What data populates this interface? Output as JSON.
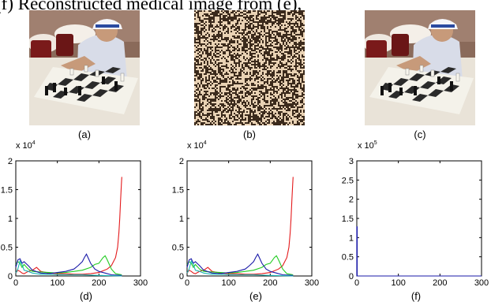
{
  "heading": "(f) Reconstructed medical image from (e),",
  "captions": {
    "a": "(a)",
    "b": "(b)",
    "c": "(c)",
    "d": "(d)",
    "e": "(e)",
    "f": "(f)"
  },
  "colors": {
    "red": "#e41a1c",
    "green": "#22cc22",
    "blue": "#1a1aa8",
    "cyan": "#19b6b6",
    "noise_dark": "#3b2a1c",
    "noise_light": "#e9d2b4"
  },
  "chart_data": [
    {
      "type": "line",
      "panel": "(d)",
      "exponent_label": "x 10",
      "exponent": "4",
      "xlim": [
        0,
        300
      ],
      "ylim": [
        0,
        2
      ],
      "xticks": [
        "0",
        "100",
        "200",
        "300"
      ],
      "yticks": [
        "0",
        "0.5",
        "1",
        "1.5",
        "2"
      ],
      "series": [
        {
          "color": "red",
          "x": [
            0,
            5,
            10,
            15,
            20,
            30,
            40,
            50,
            60,
            80,
            100,
            120,
            140,
            160,
            180,
            200,
            220,
            230,
            240,
            245,
            248,
            250,
            252,
            254,
            255
          ],
          "y": [
            0.05,
            0.1,
            0.08,
            0.05,
            0.04,
            0.08,
            0.1,
            0.15,
            0.08,
            0.05,
            0.04,
            0.04,
            0.03,
            0.03,
            0.04,
            0.06,
            0.12,
            0.18,
            0.32,
            0.5,
            0.75,
            1.0,
            1.3,
            1.6,
            1.72
          ]
        },
        {
          "color": "green",
          "x": [
            0,
            5,
            10,
            15,
            20,
            30,
            40,
            60,
            80,
            100,
            120,
            140,
            160,
            180,
            190,
            200,
            210,
            215,
            220,
            230,
            240,
            255
          ],
          "y": [
            0.2,
            0.25,
            0.22,
            0.15,
            0.2,
            0.12,
            0.08,
            0.07,
            0.06,
            0.05,
            0.06,
            0.08,
            0.1,
            0.15,
            0.2,
            0.22,
            0.32,
            0.35,
            0.28,
            0.12,
            0.04,
            0.02
          ]
        },
        {
          "color": "blue",
          "x": [
            0,
            5,
            10,
            15,
            20,
            30,
            40,
            60,
            80,
            100,
            120,
            140,
            150,
            160,
            165,
            170,
            175,
            180,
            190,
            200,
            215,
            230,
            255
          ],
          "y": [
            0.15,
            0.28,
            0.3,
            0.22,
            0.25,
            0.18,
            0.1,
            0.05,
            0.04,
            0.06,
            0.08,
            0.12,
            0.18,
            0.25,
            0.32,
            0.38,
            0.3,
            0.22,
            0.12,
            0.08,
            0.05,
            0.02,
            0.01
          ]
        },
        {
          "color": "cyan",
          "x": [
            0,
            5,
            10,
            15,
            20,
            30,
            40,
            60,
            80,
            100,
            120,
            140,
            160,
            200,
            255
          ],
          "y": [
            0.05,
            0.12,
            0.26,
            0.2,
            0.1,
            0.08,
            0.05,
            0.03,
            0.03,
            0.02,
            0.02,
            0.02,
            0.02,
            0.01,
            0.0
          ]
        }
      ]
    },
    {
      "type": "line",
      "panel": "(e)",
      "exponent_label": "x 10",
      "exponent": "4",
      "xlim": [
        0,
        300
      ],
      "ylim": [
        0,
        2
      ],
      "xticks": [
        "0",
        "100",
        "200",
        "300"
      ],
      "yticks": [
        "0",
        "0.5",
        "1",
        "1.5",
        "2"
      ],
      "series": [
        {
          "color": "red",
          "x": [
            0,
            5,
            10,
            15,
            20,
            30,
            40,
            50,
            60,
            80,
            100,
            120,
            140,
            160,
            180,
            200,
            220,
            230,
            240,
            245,
            248,
            250,
            252,
            254,
            255
          ],
          "y": [
            0.05,
            0.1,
            0.08,
            0.05,
            0.04,
            0.08,
            0.1,
            0.15,
            0.08,
            0.05,
            0.04,
            0.04,
            0.03,
            0.03,
            0.04,
            0.06,
            0.12,
            0.18,
            0.32,
            0.5,
            0.75,
            1.0,
            1.3,
            1.6,
            1.72
          ]
        },
        {
          "color": "green",
          "x": [
            0,
            5,
            10,
            15,
            20,
            30,
            40,
            60,
            80,
            100,
            120,
            140,
            160,
            180,
            190,
            200,
            210,
            215,
            220,
            230,
            240,
            255
          ],
          "y": [
            0.2,
            0.25,
            0.22,
            0.15,
            0.2,
            0.12,
            0.08,
            0.07,
            0.06,
            0.05,
            0.06,
            0.08,
            0.1,
            0.15,
            0.2,
            0.22,
            0.32,
            0.35,
            0.28,
            0.12,
            0.04,
            0.02
          ]
        },
        {
          "color": "blue",
          "x": [
            0,
            5,
            10,
            15,
            20,
            30,
            40,
            60,
            80,
            100,
            120,
            140,
            150,
            160,
            165,
            170,
            175,
            180,
            190,
            200,
            215,
            230,
            255
          ],
          "y": [
            0.15,
            0.28,
            0.3,
            0.22,
            0.25,
            0.18,
            0.1,
            0.05,
            0.04,
            0.06,
            0.08,
            0.12,
            0.18,
            0.25,
            0.32,
            0.38,
            0.3,
            0.22,
            0.12,
            0.08,
            0.05,
            0.02,
            0.01
          ]
        },
        {
          "color": "cyan",
          "x": [
            0,
            5,
            10,
            15,
            20,
            30,
            40,
            60,
            80,
            100,
            120,
            140,
            160,
            200,
            255
          ],
          "y": [
            0.05,
            0.12,
            0.26,
            0.2,
            0.1,
            0.08,
            0.05,
            0.03,
            0.03,
            0.02,
            0.02,
            0.02,
            0.02,
            0.01,
            0.0
          ]
        }
      ]
    },
    {
      "type": "line",
      "panel": "(f)",
      "exponent_label": "x 10",
      "exponent": "5",
      "xlim": [
        0,
        300
      ],
      "ylim": [
        0,
        3
      ],
      "xticks": [
        "0",
        "100",
        "200",
        "300"
      ],
      "yticks": [
        "0",
        "0.5",
        "1",
        "1.5",
        "2",
        "2.5",
        "3"
      ],
      "series": [
        {
          "color": "blue",
          "x": [
            0,
            0,
            1,
            1,
            2,
            300
          ],
          "y": [
            0,
            1.28,
            1.28,
            0.0,
            0.0,
            0.0
          ]
        }
      ]
    }
  ]
}
